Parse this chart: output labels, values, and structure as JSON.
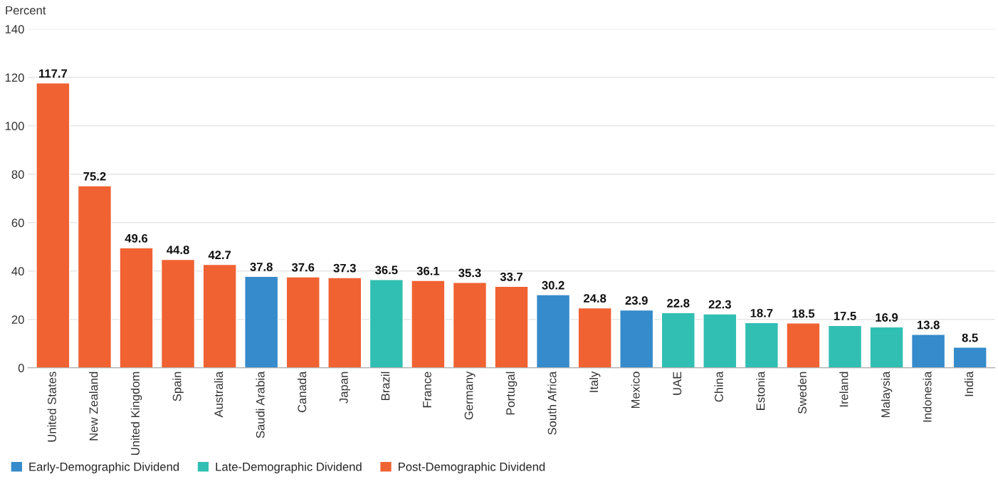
{
  "chart_data": {
    "type": "bar",
    "ylabel": "Percent",
    "categories": [
      "United States",
      "New Zealand",
      "United Kingdom",
      "Spain",
      "Australia",
      "Saudi Arabia",
      "Canada",
      "Japan",
      "Brazil",
      "France",
      "Germany",
      "Portugal",
      "South Africa",
      "Italy",
      "Mexico",
      "UAE",
      "China",
      "Estonia",
      "Sweden",
      "Ireland",
      "Malaysia",
      "Indonesia",
      "India"
    ],
    "series": [
      {
        "name": "Early-Demographic Dividend",
        "color": "#358bcb",
        "values": [
          null,
          null,
          null,
          null,
          null,
          37.8,
          null,
          null,
          null,
          null,
          null,
          null,
          30.2,
          null,
          23.9,
          null,
          null,
          null,
          null,
          null,
          null,
          13.8,
          8.5
        ]
      },
      {
        "name": "Late-Demographic Dividend",
        "color": "#31bfb3",
        "values": [
          null,
          null,
          null,
          null,
          null,
          null,
          null,
          null,
          36.5,
          null,
          null,
          null,
          null,
          null,
          null,
          22.8,
          22.3,
          18.7,
          null,
          17.5,
          16.9,
          null,
          null
        ]
      },
      {
        "name": "Post-Demographic Dividend",
        "color": "#f06232",
        "values": [
          117.7,
          75.2,
          49.6,
          44.8,
          42.7,
          null,
          37.6,
          37.3,
          null,
          36.1,
          35.3,
          33.7,
          null,
          24.8,
          null,
          null,
          null,
          null,
          18.5,
          null,
          null,
          null,
          null
        ]
      }
    ],
    "ylim": [
      0,
      140
    ],
    "yticks": [
      0,
      20,
      40,
      60,
      80,
      100,
      120,
      140
    ],
    "grid": "y",
    "legend": "bottom left",
    "data_labels": true
  }
}
